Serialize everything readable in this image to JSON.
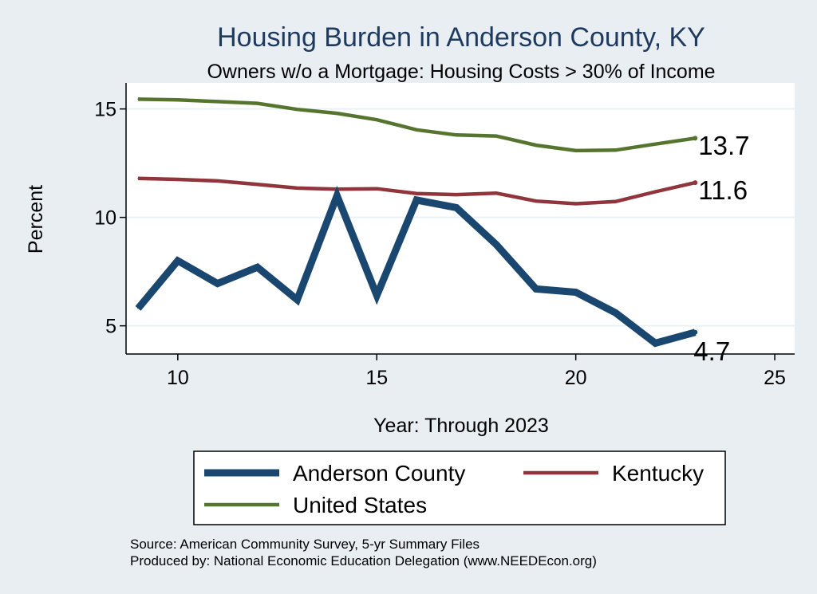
{
  "chart_data": {
    "type": "line",
    "title": "Housing Burden in Anderson County, KY",
    "subtitle": "Owners w/o a Mortgage: Housing Costs > 30% of Income",
    "xlabel": "Year: Through 2023",
    "ylabel": "Percent",
    "xlim": [
      8.7,
      25.5
    ],
    "ylim": [
      3.7,
      16.2
    ],
    "xticks": [
      10,
      15,
      20,
      25
    ],
    "yticks": [
      5,
      10,
      15
    ],
    "grid": true,
    "legend_position": "bottom",
    "x": [
      9,
      10,
      11,
      12,
      13,
      14,
      15,
      16,
      17,
      18,
      19,
      20,
      21,
      22,
      23
    ],
    "series": [
      {
        "name": "Anderson County",
        "color": "#1a476f",
        "width": 9,
        "values": [
          5.8,
          8.0,
          6.95,
          7.7,
          6.2,
          11.0,
          6.4,
          10.8,
          10.45,
          8.75,
          6.7,
          6.55,
          5.6,
          4.2,
          4.7
        ],
        "end_label": "4.7",
        "end_label_pos": "below"
      },
      {
        "name": "Kentucky",
        "color": "#90353b",
        "width": 4.5,
        "values": [
          11.8,
          11.75,
          11.68,
          11.52,
          11.35,
          11.3,
          11.32,
          11.1,
          11.05,
          11.12,
          10.75,
          10.63,
          10.73,
          11.18,
          11.6
        ],
        "end_label": "11.6",
        "end_label_pos": "right"
      },
      {
        "name": "United States",
        "color": "#55752f",
        "width": 4.5,
        "values": [
          15.45,
          15.42,
          15.34,
          15.26,
          14.98,
          14.8,
          14.5,
          14.04,
          13.8,
          13.75,
          13.33,
          13.08,
          13.1,
          13.38,
          13.65
        ],
        "end_label": "13.7",
        "end_label_pos": "right"
      }
    ]
  },
  "source_lines": [
    "Source: American Community Survey, 5-yr Summary Files",
    "Produced by: National Economic Education Delegation (www.NEEDEcon.org)"
  ]
}
